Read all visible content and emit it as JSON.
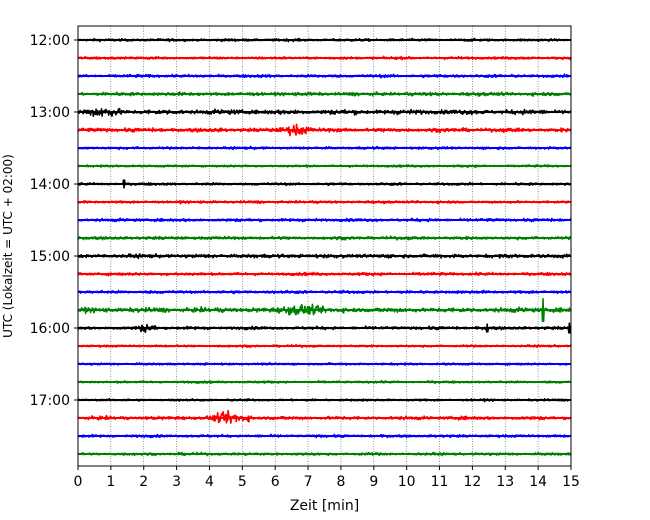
{
  "chart_data": {
    "type": "line",
    "title": "",
    "xlabel": "Zeit  [min]",
    "ylabel": "UTC (Lokalzeit = UTC + 02:00)",
    "xlim": [
      0,
      15
    ],
    "x_ticks": [
      "0",
      "1",
      "2",
      "3",
      "4",
      "5",
      "6",
      "7",
      "8",
      "9",
      "10",
      "11",
      "12",
      "13",
      "14",
      "15"
    ],
    "y_ticks": [
      "12:00",
      "13:00",
      "14:00",
      "15:00",
      "16:00",
      "17:00"
    ],
    "grid_x": true,
    "grid_y": false,
    "trace_interval_minutes": 15,
    "trace_start": "12:00",
    "trace_end": "17:45",
    "colors_cycle": [
      "#000000",
      "#ff0000",
      "#0000ff",
      "#008000"
    ],
    "series": [
      {
        "start": "12:00",
        "color": "#000000",
        "amplitude": 0.3
      },
      {
        "start": "12:15",
        "color": "#ff0000",
        "amplitude": 0.3
      },
      {
        "start": "12:30",
        "color": "#0000ff",
        "amplitude": 0.35
      },
      {
        "start": "12:45",
        "color": "#008000",
        "amplitude": 0.4
      },
      {
        "start": "13:00",
        "color": "#000000",
        "amplitude": 0.55
      },
      {
        "start": "13:15",
        "color": "#ff0000",
        "amplitude": 0.45
      },
      {
        "start": "13:30",
        "color": "#0000ff",
        "amplitude": 0.3
      },
      {
        "start": "13:45",
        "color": "#008000",
        "amplitude": 0.25
      },
      {
        "start": "14:00",
        "color": "#000000",
        "amplitude": 0.3
      },
      {
        "start": "14:15",
        "color": "#ff0000",
        "amplitude": 0.3
      },
      {
        "start": "14:30",
        "color": "#0000ff",
        "amplitude": 0.35
      },
      {
        "start": "14:45",
        "color": "#008000",
        "amplitude": 0.35
      },
      {
        "start": "15:00",
        "color": "#000000",
        "amplitude": 0.45
      },
      {
        "start": "15:15",
        "color": "#ff0000",
        "amplitude": 0.35
      },
      {
        "start": "15:30",
        "color": "#0000ff",
        "amplitude": 0.35
      },
      {
        "start": "15:45",
        "color": "#008000",
        "amplitude": 0.55
      },
      {
        "start": "16:00",
        "color": "#000000",
        "amplitude": 0.35
      },
      {
        "start": "16:15",
        "color": "#ff0000",
        "amplitude": 0.25
      },
      {
        "start": "16:30",
        "color": "#0000ff",
        "amplitude": 0.25
      },
      {
        "start": "16:45",
        "color": "#008000",
        "amplitude": 0.25
      },
      {
        "start": "17:00",
        "color": "#000000",
        "amplitude": 0.25
      },
      {
        "start": "17:15",
        "color": "#ff0000",
        "amplitude": 0.4
      },
      {
        "start": "17:30",
        "color": "#0000ff",
        "amplitude": 0.3
      },
      {
        "start": "17:45",
        "color": "#008000",
        "amplitude": 0.3
      }
    ],
    "events": [
      {
        "trace": "13:15",
        "x_min": 6.1,
        "x_max": 7.2,
        "amplitude": 1.4
      },
      {
        "trace": "15:45",
        "x_min": 6.0,
        "x_max": 7.6,
        "amplitude": 1.2
      },
      {
        "trace": "17:15",
        "x_min": 3.8,
        "x_max": 5.5,
        "amplitude": 1.3
      },
      {
        "trace": "16:00",
        "x_min": 1.7,
        "x_max": 2.5,
        "amplitude": 1.0
      },
      {
        "trace": "13:00",
        "x_min": 0.0,
        "x_max": 1.5,
        "amplitude": 1.0
      }
    ],
    "spikes": [
      {
        "trace": "15:45",
        "x": 14.15,
        "amplitude": 3.5
      },
      {
        "trace": "16:00",
        "x": 14.95,
        "amplitude": 1.5
      },
      {
        "trace": "16:00",
        "x": 12.45,
        "amplitude": 1.2
      },
      {
        "trace": "14:00",
        "x": 1.4,
        "amplitude": 1.2
      }
    ]
  }
}
